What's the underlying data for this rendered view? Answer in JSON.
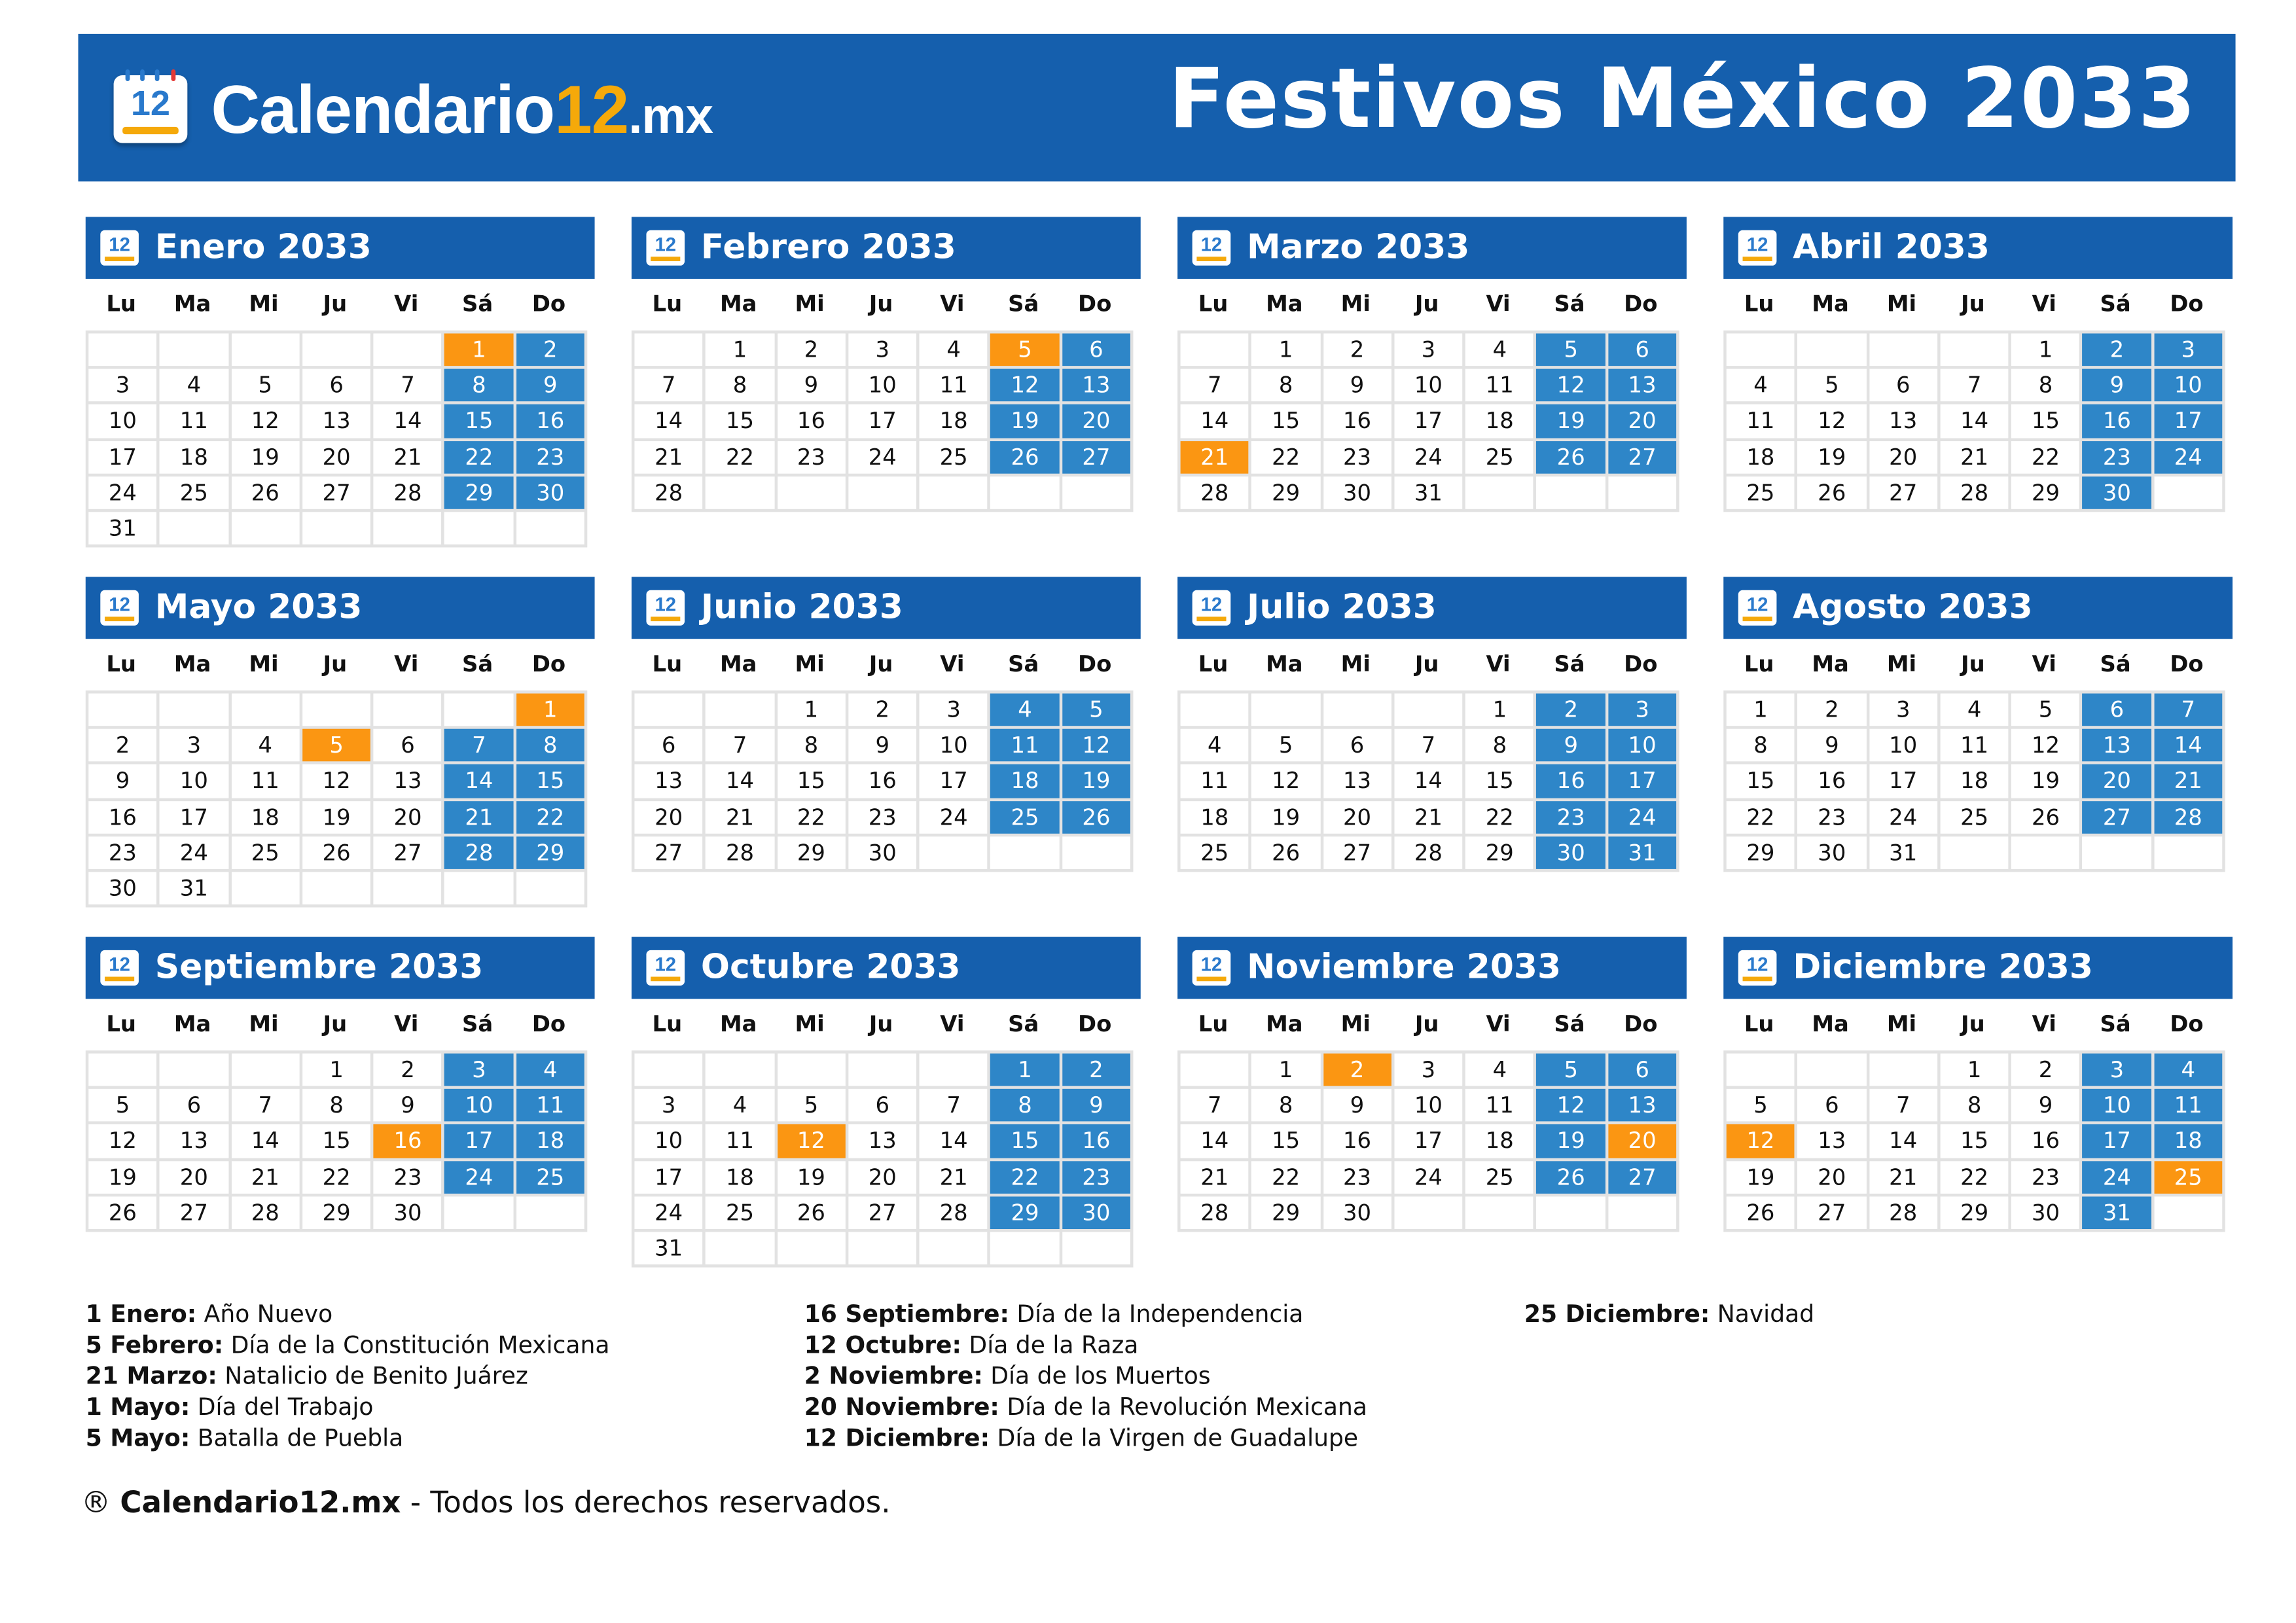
{
  "header": {
    "logo": {
      "brand": "Calendario",
      "number": "12",
      "tld": ".mx",
      "icon_number": "12"
    },
    "title": "Festivos México 2033"
  },
  "weekdays": [
    "Lu",
    "Ma",
    "Mi",
    "Ju",
    "Vi",
    "Sá",
    "Do"
  ],
  "colors": {
    "header": "#155fad",
    "weekend": "#2e86c8",
    "holiday": "#fb9612",
    "grid": "#e2e2e2"
  },
  "months": [
    {
      "name": "Enero 2033",
      "first_weekday": "Sá",
      "days": 31,
      "holidays": [
        1
      ]
    },
    {
      "name": "Febrero 2033",
      "first_weekday": "Ma",
      "days": 28,
      "holidays": [
        5
      ]
    },
    {
      "name": "Marzo 2033",
      "first_weekday": "Ma",
      "days": 31,
      "holidays": [
        21
      ]
    },
    {
      "name": "Abril 2033",
      "first_weekday": "Vi",
      "days": 30,
      "holidays": []
    },
    {
      "name": "Mayo 2033",
      "first_weekday": "Do",
      "days": 31,
      "holidays": [
        1,
        5
      ]
    },
    {
      "name": "Junio 2033",
      "first_weekday": "Mi",
      "days": 30,
      "holidays": []
    },
    {
      "name": "Julio 2033",
      "first_weekday": "Vi",
      "days": 31,
      "holidays": []
    },
    {
      "name": "Agosto 2033",
      "first_weekday": "Lu",
      "days": 31,
      "holidays": []
    },
    {
      "name": "Septiembre 2033",
      "first_weekday": "Ju",
      "days": 30,
      "holidays": [
        16
      ]
    },
    {
      "name": "Octubre 2033",
      "first_weekday": "Sá",
      "days": 31,
      "holidays": [
        12
      ]
    },
    {
      "name": "Noviembre 2033",
      "first_weekday": "Ma",
      "days": 30,
      "holidays": [
        2,
        20
      ]
    },
    {
      "name": "Diciembre 2033",
      "first_weekday": "Ju",
      "days": 31,
      "holidays": [
        12,
        25
      ]
    }
  ],
  "legend": [
    [
      {
        "date": "1 Enero:",
        "name": "Año Nuevo"
      },
      {
        "date": "5 Febrero:",
        "name": "Día de la Constitución Mexicana"
      },
      {
        "date": "21 Marzo:",
        "name": "Natalicio de Benito Juárez"
      },
      {
        "date": "1 Mayo:",
        "name": "Día del Trabajo"
      },
      {
        "date": "5 Mayo:",
        "name": "Batalla de Puebla"
      }
    ],
    [
      {
        "date": "16 Septiembre:",
        "name": "Día de la Independencia"
      },
      {
        "date": "12 Octubre:",
        "name": "Día de la Raza"
      },
      {
        "date": "2 Noviembre:",
        "name": "Día de los Muertos"
      },
      {
        "date": "20 Noviembre:",
        "name": "Día de la Revolución Mexicana"
      },
      {
        "date": "12 Diciembre:",
        "name": "Día de la Virgen de Guadalupe"
      }
    ],
    [
      {
        "date": "25 Diciembre:",
        "name": "Navidad"
      }
    ]
  ],
  "footer": {
    "symbol": "®",
    "brand": "Calendario12.mx",
    "text": " - Todos los derechos reservados."
  }
}
